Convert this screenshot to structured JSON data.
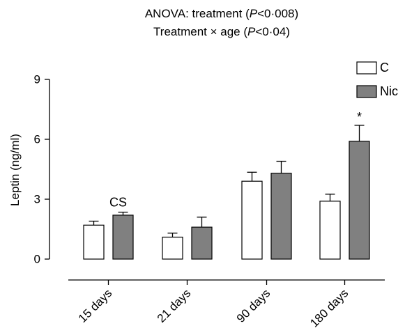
{
  "chart_data": {
    "type": "bar",
    "title_lines": [
      {
        "pre": "ANOVA: treatment (",
        "ital": "P",
        "post": "<0·008)"
      },
      {
        "pre": "Treatment × age (",
        "ital": "P",
        "post": "<0·04)"
      }
    ],
    "ylabel": "Leptin (ng/ml)",
    "xlabel": "",
    "ylim": [
      0,
      9
    ],
    "yticks": [
      0,
      3,
      6,
      9
    ],
    "categories": [
      "15 days",
      "21 days",
      "90 days",
      "180 days"
    ],
    "series": [
      {
        "name": "C",
        "color": "#ffffff",
        "values": [
          1.7,
          1.1,
          3.9,
          2.9
        ],
        "errors": [
          0.2,
          0.2,
          0.45,
          0.35
        ]
      },
      {
        "name": "Nic",
        "color": "#808080",
        "values": [
          2.2,
          1.6,
          4.3,
          5.9
        ],
        "errors": [
          0.15,
          0.5,
          0.6,
          0.8
        ]
      }
    ],
    "annotations": [
      {
        "category": "15 days",
        "text": "CS"
      },
      {
        "category": "180 days",
        "series": "Nic",
        "text": "*"
      }
    ],
    "legend_position": "top-right",
    "grid": false
  }
}
